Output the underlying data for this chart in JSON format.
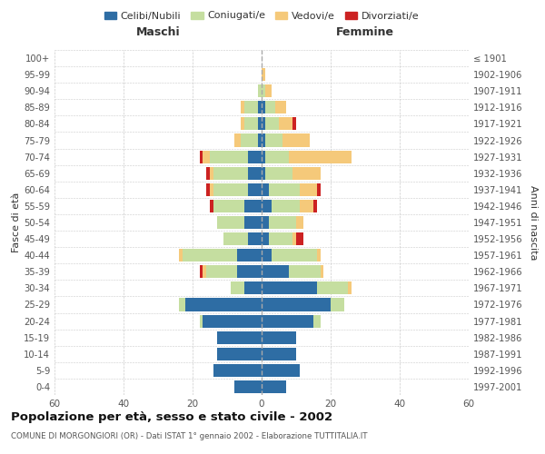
{
  "age_groups": [
    "0-4",
    "5-9",
    "10-14",
    "15-19",
    "20-24",
    "25-29",
    "30-34",
    "35-39",
    "40-44",
    "45-49",
    "50-54",
    "55-59",
    "60-64",
    "65-69",
    "70-74",
    "75-79",
    "80-84",
    "85-89",
    "90-94",
    "95-99",
    "100+"
  ],
  "birth_years": [
    "1997-2001",
    "1992-1996",
    "1987-1991",
    "1982-1986",
    "1977-1981",
    "1972-1976",
    "1967-1971",
    "1962-1966",
    "1957-1961",
    "1952-1956",
    "1947-1951",
    "1942-1946",
    "1937-1941",
    "1932-1936",
    "1927-1931",
    "1922-1926",
    "1917-1921",
    "1912-1916",
    "1907-1911",
    "1902-1906",
    "≤ 1901"
  ],
  "maschi": {
    "celibi": [
      8,
      14,
      13,
      13,
      17,
      22,
      5,
      7,
      7,
      4,
      5,
      5,
      4,
      4,
      4,
      1,
      1,
      1,
      0,
      0,
      0
    ],
    "coniugati": [
      0,
      0,
      0,
      0,
      1,
      2,
      4,
      9,
      16,
      7,
      8,
      9,
      10,
      10,
      11,
      5,
      4,
      4,
      1,
      0,
      0
    ],
    "vedovi": [
      0,
      0,
      0,
      0,
      0,
      0,
      0,
      1,
      1,
      0,
      0,
      0,
      1,
      1,
      2,
      2,
      1,
      1,
      0,
      0,
      0
    ],
    "divorziati": [
      0,
      0,
      0,
      0,
      0,
      0,
      0,
      1,
      0,
      0,
      0,
      1,
      1,
      1,
      1,
      0,
      0,
      0,
      0,
      0,
      0
    ]
  },
  "femmine": {
    "nubili": [
      7,
      11,
      10,
      10,
      15,
      20,
      16,
      8,
      3,
      2,
      2,
      3,
      2,
      1,
      1,
      1,
      1,
      1,
      0,
      0,
      0
    ],
    "coniugate": [
      0,
      0,
      0,
      0,
      2,
      4,
      9,
      9,
      13,
      7,
      8,
      8,
      9,
      8,
      7,
      5,
      4,
      3,
      1,
      0,
      0
    ],
    "vedove": [
      0,
      0,
      0,
      0,
      0,
      0,
      1,
      1,
      1,
      1,
      2,
      4,
      5,
      8,
      18,
      8,
      4,
      3,
      2,
      1,
      0
    ],
    "divorziate": [
      0,
      0,
      0,
      0,
      0,
      0,
      0,
      0,
      0,
      2,
      0,
      1,
      1,
      0,
      0,
      0,
      1,
      0,
      0,
      0,
      0
    ]
  },
  "colors": {
    "celibi_nubili": "#2e6da4",
    "coniugati": "#c5dea0",
    "vedovi": "#f5c97a",
    "divorziati": "#cc2222"
  },
  "title": "Popolazione per età, sesso e stato civile - 2002",
  "subtitle": "COMUNE DI MORGONGIORI (OR) - Dati ISTAT 1° gennaio 2002 - Elaborazione TUTTITALIA.IT",
  "xlabel_left": "Maschi",
  "xlabel_right": "Femmine",
  "ylabel": "Fasce di età",
  "ylabel_right": "Anni di nascita",
  "xlim": 60,
  "background_color": "#ffffff",
  "grid_color": "#cccccc"
}
